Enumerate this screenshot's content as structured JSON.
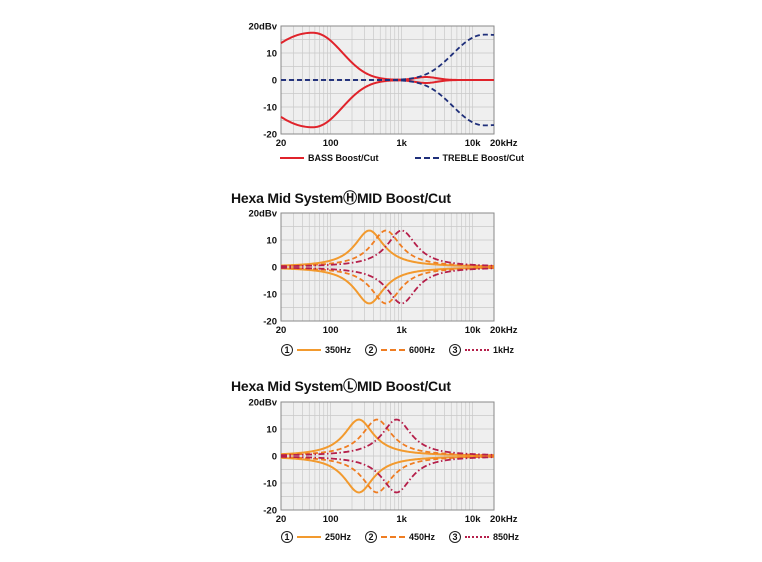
{
  "chart_data": [
    {
      "type": "line",
      "title": "",
      "ylabel": "",
      "xlabel": "",
      "x_scale": "log",
      "xlim": [
        20,
        20000
      ],
      "ylim": [
        -20,
        20
      ],
      "y_ticks": [
        "20dBv",
        "10",
        "0",
        "-10",
        "-20"
      ],
      "x_ticks": [
        "20",
        "100",
        "1k",
        "10k",
        "20kHz"
      ],
      "grid": true,
      "legend_placement": "bottom",
      "series": [
        {
          "name": "BASS Boost/Cut",
          "color": "#e0232b",
          "style": "solid",
          "kind": "bass"
        },
        {
          "name": "TREBLE Boost/Cut",
          "color": "#1f2f7a",
          "style": "dashed",
          "kind": "treble"
        }
      ]
    },
    {
      "type": "line",
      "title": "Hexa Mid SystemⒽMID Boost/Cut",
      "ylabel": "",
      "xlabel": "",
      "x_scale": "log",
      "xlim": [
        20,
        20000
      ],
      "ylim": [
        -20,
        20
      ],
      "y_ticks": [
        "20dBv",
        "10",
        "0",
        "-10",
        "-20"
      ],
      "x_ticks": [
        "20",
        "100",
        "1k",
        "10k",
        "20kHz"
      ],
      "grid": true,
      "legend_placement": "bottom",
      "series": [
        {
          "name": "350Hz",
          "number": "1",
          "center_hz": 350,
          "gain_db": 13.5,
          "color": "#f29a2e",
          "style": "solid"
        },
        {
          "name": "600Hz",
          "number": "2",
          "center_hz": 600,
          "gain_db": 13.5,
          "color": "#ef7d22",
          "style": "dashed"
        },
        {
          "name": "1kHz",
          "number": "3",
          "center_hz": 1000,
          "gain_db": 13.5,
          "color": "#b51f4a",
          "style": "dashdot"
        }
      ]
    },
    {
      "type": "line",
      "title": "Hexa Mid SystemⓁMID Boost/Cut",
      "ylabel": "",
      "xlabel": "",
      "x_scale": "log",
      "xlim": [
        20,
        20000
      ],
      "ylim": [
        -20,
        20
      ],
      "y_ticks": [
        "20dBv",
        "10",
        "0",
        "-10",
        "-20"
      ],
      "x_ticks": [
        "20",
        "100",
        "1k",
        "10k",
        "20kHz"
      ],
      "grid": true,
      "legend_placement": "bottom",
      "series": [
        {
          "name": "250Hz",
          "number": "1",
          "center_hz": 250,
          "gain_db": 13.5,
          "color": "#f29a2e",
          "style": "solid"
        },
        {
          "name": "450Hz",
          "number": "2",
          "center_hz": 450,
          "gain_db": 13.5,
          "color": "#ef7d22",
          "style": "dashed"
        },
        {
          "name": "850Hz",
          "number": "3",
          "center_hz": 850,
          "gain_db": 13.5,
          "color": "#b51f4a",
          "style": "dashdot"
        }
      ]
    }
  ]
}
